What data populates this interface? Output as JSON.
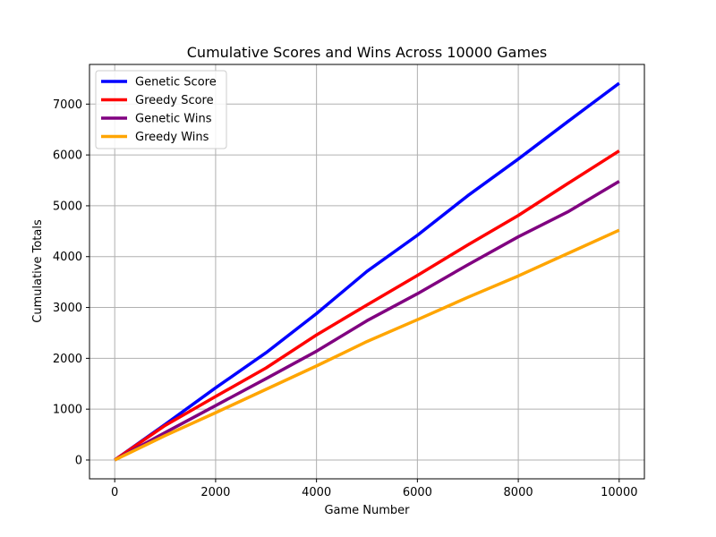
{
  "chart_data": {
    "type": "line",
    "title": "Cumulative Scores and Wins Across 10000 Games",
    "xlabel": "Game Number",
    "ylabel": "Cumulative Totals",
    "xlim": [
      -500,
      10500
    ],
    "ylim": [
      -370,
      7780
    ],
    "x_ticks": [
      0,
      2000,
      4000,
      6000,
      8000,
      10000
    ],
    "y_ticks": [
      0,
      1000,
      2000,
      3000,
      4000,
      5000,
      6000,
      7000
    ],
    "grid": true,
    "legend_position": "upper-left",
    "series": [
      {
        "name": "Genetic Score",
        "color": "#0000ff",
        "x": [
          0,
          1000,
          2000,
          3000,
          4000,
          5000,
          6000,
          7000,
          8000,
          9000,
          10000
        ],
        "y": [
          0,
          700,
          1420,
          2110,
          2880,
          3710,
          4420,
          5200,
          5920,
          6670,
          7410
        ]
      },
      {
        "name": "Greedy Score",
        "color": "#ff0000",
        "x": [
          0,
          1000,
          2000,
          3000,
          4000,
          5000,
          6000,
          7000,
          8000,
          9000,
          10000
        ],
        "y": [
          0,
          680,
          1250,
          1810,
          2460,
          3050,
          3630,
          4230,
          4810,
          5450,
          6080
        ]
      },
      {
        "name": "Genetic Wins",
        "color": "#800080",
        "x": [
          0,
          1000,
          2000,
          3000,
          4000,
          5000,
          6000,
          7000,
          8000,
          9000,
          10000
        ],
        "y": [
          0,
          540,
          1070,
          1600,
          2140,
          2740,
          3270,
          3840,
          4390,
          4890,
          5480
        ]
      },
      {
        "name": "Greedy Wins",
        "color": "#ffa500",
        "x": [
          0,
          1000,
          2000,
          3000,
          4000,
          5000,
          6000,
          7000,
          8000,
          9000,
          10000
        ],
        "y": [
          0,
          480,
          930,
          1390,
          1850,
          2330,
          2760,
          3200,
          3620,
          4070,
          4520
        ]
      }
    ]
  }
}
